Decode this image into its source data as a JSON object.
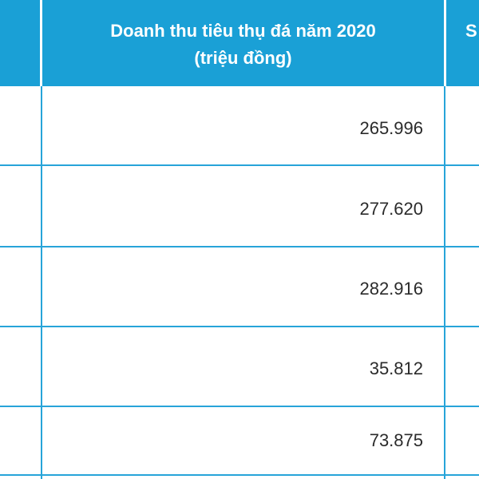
{
  "header": {
    "title_line1": "Doanh thu tiêu thụ đá năm 2020",
    "title_line2": "(triệu đồng)",
    "next_column_partial": "S"
  },
  "rows": [
    {
      "value": "265.996"
    },
    {
      "value": "277.620"
    },
    {
      "value": "282.916"
    },
    {
      "value": "35.812"
    },
    {
      "value": "73.875"
    }
  ],
  "colors": {
    "header_bg": "#1aa0d6",
    "grid_line": "#27a4d9",
    "header_text": "#ffffff",
    "cell_text": "#2b2b2b"
  }
}
